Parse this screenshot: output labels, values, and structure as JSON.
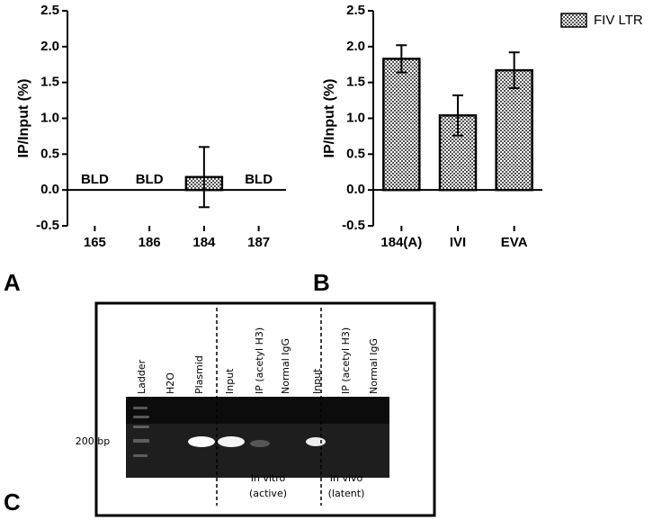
{
  "chart_data": [
    {
      "type": "bar",
      "y_label": "IP/Input (%)",
      "categories": [
        "165",
        "186",
        "184",
        "187"
      ],
      "values": [
        null,
        null,
        0.18,
        null
      ],
      "errors": [
        null,
        null,
        0.42,
        null
      ],
      "value_labels": [
        "BLD",
        "BLD",
        null,
        "BLD"
      ],
      "color": "#555555",
      "ylim": [
        -0.5,
        2.5
      ],
      "yticks": [
        -0.5,
        {
          "value": 0,
          "label": "0.0"
        },
        0.5,
        {
          "value": 1,
          "label": "1.0"
        },
        1.5,
        {
          "value": 2,
          "label": "2.0"
        },
        2.5
      ]
    },
    {
      "type": "bar",
      "y_label": "IP/Input (%)",
      "categories": [
        "184(A)",
        "IVI",
        "EVA"
      ],
      "series": [
        {
          "name": "FIV LTR",
          "color": "#555555",
          "values": [
            1.83,
            1.04,
            1.67
          ],
          "errors": [
            0.19,
            0.28,
            0.25
          ]
        }
      ],
      "legend": "top-right",
      "ylim": [
        -0.5,
        2.5
      ],
      "yticks": [
        -0.5,
        {
          "value": 0,
          "label": "0.0"
        },
        0.5,
        {
          "value": 1,
          "label": "1.0"
        },
        1.5,
        {
          "value": 2,
          "label": "2.0"
        },
        2.5
      ]
    }
  ],
  "panels": [
    "A",
    "B",
    "C"
  ],
  "gel": {
    "lanes": [
      "Ladder",
      "H2O",
      "Plasmid",
      "Input",
      "IP (acetyl H3)",
      "Normal IgG",
      "Input",
      "IP (acetyl H3)",
      "Normal IgG"
    ],
    "marker": "200 bp",
    "groups": [
      [
        "In vitro",
        "(active)"
      ],
      [
        "In vivo",
        "(latent)"
      ]
    ]
  }
}
